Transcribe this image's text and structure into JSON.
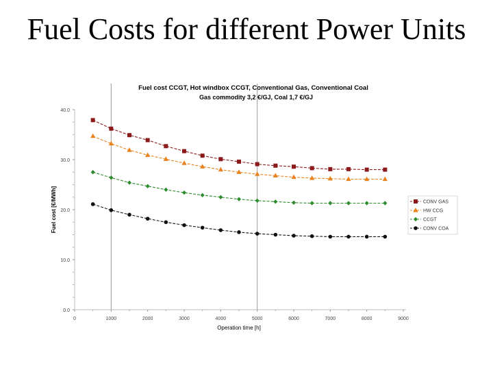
{
  "slide": {
    "title": "Fuel Costs for different Power Units"
  },
  "chart_data": {
    "type": "line",
    "title": "Fuel cost CCGT, Hot windbox CCGT, Conventional Gas, Conventional Coal",
    "subtitle": "Gas commodity 3,2 €/GJ, Coal 1,7 €/GJ",
    "xlabel": "Operation time [h]",
    "ylabel": "Fuel cost [€/MWh]",
    "xlim": [
      0,
      9000
    ],
    "ylim": [
      0,
      40
    ],
    "x_ticks": [
      "0",
      "1000",
      "2000",
      "3000",
      "4000",
      "5000",
      "6000",
      "7000",
      "8000",
      "9000"
    ],
    "y_ticks": [
      "0.0",
      "10.0",
      "20.0",
      "30.0",
      "40.0"
    ],
    "reference_lines_x": [
      1000,
      5000
    ],
    "legend_position": "right",
    "x": [
      500,
      1000,
      1500,
      2000,
      2500,
      3000,
      3500,
      4000,
      4500,
      5000,
      5500,
      6000,
      6500,
      7000,
      7500,
      8000,
      8500
    ],
    "series": [
      {
        "name": "CONV GAS",
        "color": "#8b1a1a",
        "marker": "square",
        "values": [
          37.9,
          36.2,
          34.9,
          33.9,
          32.7,
          31.7,
          30.8,
          30.1,
          29.6,
          29.1,
          28.8,
          28.6,
          28.3,
          28.1,
          28.1,
          28.0,
          28.0
        ]
      },
      {
        "name": "HW CCG",
        "color": "#e8821e",
        "marker": "triangle",
        "values": [
          34.7,
          33.2,
          31.9,
          30.9,
          30.1,
          29.3,
          28.6,
          28.0,
          27.5,
          27.1,
          26.8,
          26.5,
          26.3,
          26.2,
          26.1,
          26.1,
          26.1
        ]
      },
      {
        "name": "CCGT",
        "color": "#2e8b2e",
        "marker": "diamond",
        "values": [
          27.5,
          26.4,
          25.4,
          24.7,
          24.0,
          23.4,
          22.9,
          22.5,
          22.1,
          21.8,
          21.6,
          21.4,
          21.3,
          21.3,
          21.3,
          21.3,
          21.3
        ]
      },
      {
        "name": "CONV COA",
        "color": "#111111",
        "marker": "circle",
        "values": [
          21.1,
          19.9,
          19.0,
          18.2,
          17.5,
          16.9,
          16.4,
          15.9,
          15.5,
          15.2,
          15.0,
          14.8,
          14.7,
          14.6,
          14.6,
          14.6,
          14.6
        ]
      }
    ]
  }
}
